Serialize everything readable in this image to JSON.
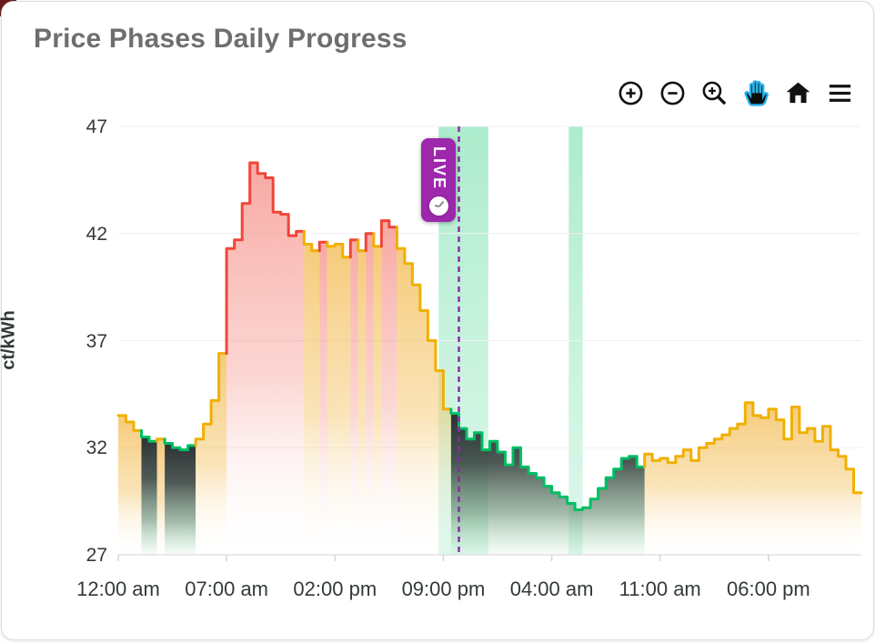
{
  "title": "Price Phases Daily Progress",
  "toolbar": {
    "icons": [
      "zoom-in",
      "zoom-out",
      "selection-zoom",
      "pan",
      "home",
      "menu"
    ],
    "active_icon": "pan",
    "icon_color": "#111111",
    "active_color": "#29b2e8"
  },
  "live_badge": {
    "label": "LIVE",
    "badge_color": "#9d28ac",
    "line_color": "#8e24aa",
    "line_hour": 22.0
  },
  "chart_data": {
    "type": "area",
    "title": "Price Phases Daily Progress",
    "xlabel": "",
    "ylabel": "ct/kWh",
    "ylim": [
      27,
      47
    ],
    "yticks": [
      47,
      42,
      37,
      32,
      27
    ],
    "xticks": [
      "12:00 am",
      "07:00 am",
      "02:00 pm",
      "09:00 pm",
      "04:00 am",
      "11:00 am",
      "06:00 pm"
    ],
    "xtick_hours": [
      0,
      7,
      14,
      21,
      28,
      35,
      42
    ],
    "hours_span": 48,
    "step_hours": 0.5,
    "grid": true,
    "legend": "none",
    "series": [
      {
        "name": "price",
        "values": [
          33.5,
          33.2,
          32.8,
          32.5,
          32.3,
          32.4,
          32.2,
          32.0,
          31.9,
          32.1,
          32.4,
          33.1,
          34.2,
          36.4,
          41.3,
          41.7,
          43.4,
          45.3,
          44.8,
          44.6,
          43.0,
          42.9,
          41.9,
          42.1,
          41.5,
          41.2,
          41.6,
          41.4,
          41.5,
          40.9,
          41.7,
          41.2,
          42.0,
          41.4,
          42.6,
          42.3,
          41.3,
          40.6,
          39.6,
          38.4,
          37.0,
          35.6,
          33.8,
          33.6,
          32.9,
          32.4,
          32.7,
          31.9,
          32.3,
          31.8,
          31.2,
          32.0,
          31.1,
          30.8,
          30.6,
          30.2,
          29.9,
          29.7,
          29.4,
          29.1,
          29.2,
          29.6,
          30.1,
          30.6,
          31.0,
          31.5,
          31.6,
          31.1,
          31.7,
          31.4,
          31.5,
          31.3,
          31.6,
          31.9,
          31.4,
          32.0,
          32.2,
          32.4,
          32.6,
          32.9,
          33.1,
          34.1,
          33.5,
          33.4,
          33.8,
          33.3,
          32.4,
          33.9,
          32.7,
          32.9,
          32.3,
          33.0,
          31.9,
          31.6,
          31.0,
          29.9
        ],
        "phases": "YYYGGYGGGGYYYYRRRRRRRRRRYYRYYYRYRYRRYYYYYYYGGGGGGGGGGGGGGGGGGGGGGGGGYYYYYYYYYYYYYYYYYYYYYYYYYYYY"
      }
    ],
    "phase_colors": {
      "Y": "#f0b000",
      "R": "#ef4639",
      "G": "#00be64"
    },
    "band_color": "#69dba4",
    "bands": [
      {
        "start_hour": 20.7,
        "end_hour": 23.9
      },
      {
        "start_hour": 29.1,
        "end_hour": 30.0
      }
    ]
  }
}
